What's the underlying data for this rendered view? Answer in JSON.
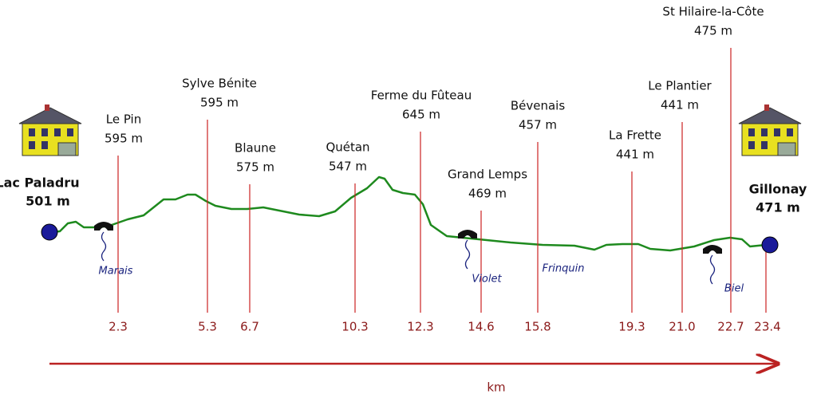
{
  "start": {
    "name": "Lac Paladru",
    "altitude": "501 m"
  },
  "end": {
    "name": "Gillonay",
    "altitude": "471 m",
    "km": "23.4"
  },
  "places": [
    {
      "name": "Le Pin",
      "altitude": "595 m",
      "km": "2.3"
    },
    {
      "name": "Sylve Bénite",
      "altitude": "595 m",
      "km": "5.3"
    },
    {
      "name": "Blaune",
      "altitude": "575 m",
      "km": "6.7"
    },
    {
      "name": "Quétan",
      "altitude": "547 m",
      "km": "10.3"
    },
    {
      "name": "Ferme du Fûteau",
      "altitude": "645 m",
      "km": "12.3"
    },
    {
      "name": "Grand Lemps",
      "altitude": "469 m",
      "km": "14.6"
    },
    {
      "name": "Bévenais",
      "altitude": "457 m",
      "km": "15.8"
    },
    {
      "name": "La Frette",
      "altitude": "441 m",
      "km": "19.3"
    },
    {
      "name": "Le Plantier",
      "altitude": "441 m",
      "km": "21.0"
    },
    {
      "name": "St Hilaire-la-Côte",
      "altitude": "475 m",
      "km": "22.7"
    }
  ],
  "streams": [
    "Marais",
    "Violet",
    "Frinquin",
    "Biel"
  ],
  "axis_label": "km"
}
